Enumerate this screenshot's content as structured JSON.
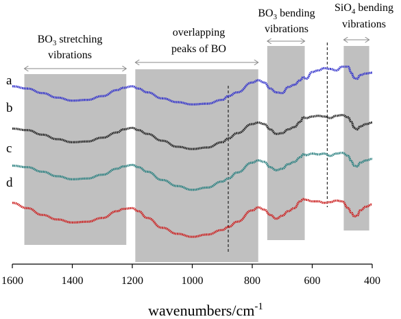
{
  "chart_data": {
    "type": "line",
    "xlabel": "wavenumbers/cm",
    "xlabel_sup": "-1",
    "xlim": [
      1600,
      400
    ],
    "x_reversed": true,
    "x_ticks": [
      1600,
      1400,
      1200,
      1000,
      800,
      600,
      400
    ],
    "regions": [
      {
        "x_range": [
          1560,
          1220
        ],
        "label_lines": [
          "BO",
          "3",
          " stretching",
          "vibrations"
        ]
      },
      {
        "x_range": [
          1190,
          780
        ],
        "label_lines": [
          "overlapping",
          "peaks of BO"
        ]
      },
      {
        "x_range": [
          750,
          625
        ],
        "label_lines": [
          "BO",
          "3",
          " bending",
          "vibrations"
        ]
      },
      {
        "x_range": [
          495,
          410
        ],
        "label_lines": [
          "SiO",
          "4",
          " bending",
          "vibrations"
        ]
      }
    ],
    "dashed_lines": [
      880,
      550
    ],
    "series": [
      {
        "name": "a",
        "color": "#3333cc",
        "x": [
          1600,
          1550,
          1500,
          1450,
          1400,
          1350,
          1300,
          1250,
          1230,
          1200,
          1180,
          1150,
          1100,
          1050,
          1000,
          950,
          900,
          880,
          850,
          800,
          780,
          760,
          740,
          720,
          700,
          680,
          660,
          640,
          630,
          620,
          600,
          580,
          560,
          540,
          520,
          500,
          480,
          470,
          460,
          450,
          440,
          420,
          400
        ],
        "y": [
          0.52,
          0.49,
          0.43,
          0.37,
          0.33,
          0.34,
          0.39,
          0.47,
          0.5,
          0.52,
          0.49,
          0.44,
          0.36,
          0.31,
          0.28,
          0.29,
          0.34,
          0.39,
          0.44,
          0.57,
          0.6,
          0.57,
          0.49,
          0.44,
          0.43,
          0.51,
          0.54,
          0.6,
          0.64,
          0.62,
          0.71,
          0.73,
          0.76,
          0.75,
          0.73,
          0.78,
          0.78,
          0.7,
          0.63,
          0.62,
          0.67,
          0.69,
          0.7
        ]
      },
      {
        "name": "b",
        "color": "#222222",
        "x": [
          1600,
          1550,
          1500,
          1450,
          1400,
          1350,
          1300,
          1250,
          1230,
          1200,
          1180,
          1150,
          1100,
          1050,
          1000,
          950,
          900,
          880,
          850,
          800,
          780,
          760,
          740,
          720,
          700,
          680,
          660,
          640,
          630,
          620,
          600,
          580,
          560,
          540,
          520,
          500,
          480,
          470,
          460,
          450,
          440,
          420,
          400
        ],
        "y": [
          0.35,
          0.33,
          0.27,
          0.21,
          0.17,
          0.18,
          0.23,
          0.3,
          0.34,
          0.36,
          0.33,
          0.28,
          0.19,
          0.11,
          0.08,
          0.1,
          0.17,
          0.22,
          0.29,
          0.41,
          0.43,
          0.41,
          0.34,
          0.28,
          0.29,
          0.34,
          0.37,
          0.44,
          0.5,
          0.49,
          0.51,
          0.52,
          0.51,
          0.49,
          0.52,
          0.53,
          0.5,
          0.44,
          0.36,
          0.34,
          0.38,
          0.41,
          0.43
        ]
      },
      {
        "name": "c",
        "color": "#2a8080",
        "x": [
          1600,
          1550,
          1500,
          1450,
          1400,
          1350,
          1300,
          1250,
          1230,
          1200,
          1180,
          1150,
          1100,
          1050,
          1000,
          950,
          900,
          880,
          850,
          800,
          780,
          760,
          740,
          720,
          700,
          680,
          660,
          640,
          630,
          620,
          600,
          580,
          560,
          540,
          520,
          500,
          480,
          470,
          460,
          450,
          440,
          420,
          400
        ],
        "y": [
          0.15,
          0.13,
          0.07,
          0.01,
          -0.03,
          -0.02,
          0.03,
          0.11,
          0.14,
          0.16,
          0.13,
          0.07,
          -0.04,
          -0.12,
          -0.17,
          -0.14,
          -0.06,
          -0.02,
          0.06,
          0.19,
          0.22,
          0.2,
          0.13,
          0.09,
          0.11,
          0.17,
          0.2,
          0.26,
          0.3,
          0.29,
          0.31,
          0.3,
          0.31,
          0.28,
          0.31,
          0.32,
          0.28,
          0.21,
          0.15,
          0.14,
          0.19,
          0.22,
          0.24
        ]
      },
      {
        "name": "d",
        "color": "#cc2222",
        "x": [
          1600,
          1550,
          1500,
          1450,
          1400,
          1350,
          1300,
          1250,
          1230,
          1200,
          1180,
          1150,
          1100,
          1050,
          1000,
          950,
          900,
          880,
          850,
          800,
          780,
          760,
          740,
          720,
          700,
          680,
          660,
          640,
          630,
          620,
          600,
          580,
          560,
          540,
          520,
          500,
          480,
          470,
          460,
          450,
          440,
          420,
          400
        ],
        "y": [
          0.03,
          -0.04,
          -0.13,
          -0.19,
          -0.23,
          -0.22,
          -0.17,
          -0.08,
          -0.05,
          -0.04,
          -0.08,
          -0.17,
          -0.3,
          -0.38,
          -0.42,
          -0.39,
          -0.33,
          -0.29,
          -0.22,
          -0.07,
          -0.03,
          -0.06,
          -0.13,
          -0.18,
          -0.14,
          -0.08,
          -0.04,
          0.05,
          0.08,
          0.07,
          0.05,
          0.05,
          0.03,
          0.04,
          0.06,
          0.05,
          -0.04,
          -0.1,
          -0.15,
          -0.14,
          -0.07,
          -0.02,
          0.01
        ]
      }
    ]
  }
}
